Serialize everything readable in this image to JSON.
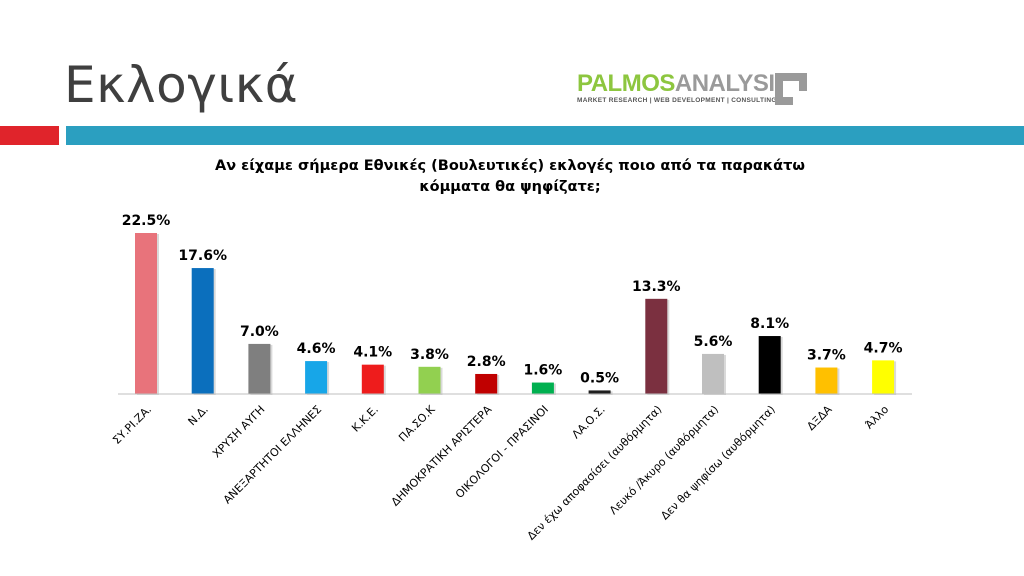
{
  "slide": {
    "title": "Εκλογικά"
  },
  "logo": {
    "word1": "PALMOS",
    "word2": "ANALYSIS",
    "tagline": "MARKET RESEARCH | WEB DEVELOPMENT | CONSULTING"
  },
  "chart_data": {
    "type": "bar",
    "title": "Αν είχαμε σήμερα Εθνικές (Βουλευτικές) εκλογές ποιο από τα παρακάτω κόμματα θα ψηφίζατε;",
    "xlabel": "",
    "ylabel": "",
    "grid": false,
    "legend": "none",
    "ylim": [
      0,
      25
    ],
    "categories": [
      "ΣΥ.ΡΙ.ΖΑ.",
      "Ν.Δ.",
      "ΧΡΥΣΗ ΑΥΓΗ",
      "ΑΝΕΞΑΡΤΗΤΟΙ ΕΛΛΗΝΕΣ",
      "Κ.Κ.Ε.",
      "ΠΑ.ΣΟ.Κ",
      "ΔΗΜΟΚΡΑΤΙΚΗ ΑΡΙΣΤΕΡΑ",
      "ΟΙΚΟΛΟΓΟΙ - ΠΡΑΣΙΝΟΙ",
      "ΛΑ.Ο.Σ.",
      "Δεν έχω αποφασίσει (αυθόρμητα)",
      "Λευκό /Άκυρο (αυθόρμητα)",
      "Δεν θα ψηφίσω (αυθόρμητα)",
      "ΔΞΔΑ",
      "Άλλο"
    ],
    "values": [
      22.5,
      17.6,
      7.0,
      4.6,
      4.1,
      3.8,
      2.8,
      1.6,
      0.5,
      13.3,
      5.6,
      8.1,
      3.7,
      4.7
    ],
    "value_labels": [
      "22.5%",
      "17.6%",
      "7.0%",
      "4.6%",
      "4.1%",
      "3.8%",
      "2.8%",
      "1.6%",
      "0.5%",
      "13.3%",
      "5.6%",
      "8.1%",
      "3.7%",
      "4.7%"
    ],
    "colors": [
      "#e8737b",
      "#0b6fbd",
      "#7f7f7f",
      "#17a6e8",
      "#ee1c1c",
      "#92d050",
      "#c00000",
      "#00b050",
      "#1f1f1f",
      "#7b3040",
      "#bfbfbf",
      "#000000",
      "#ffc000",
      "#ffff00"
    ]
  }
}
